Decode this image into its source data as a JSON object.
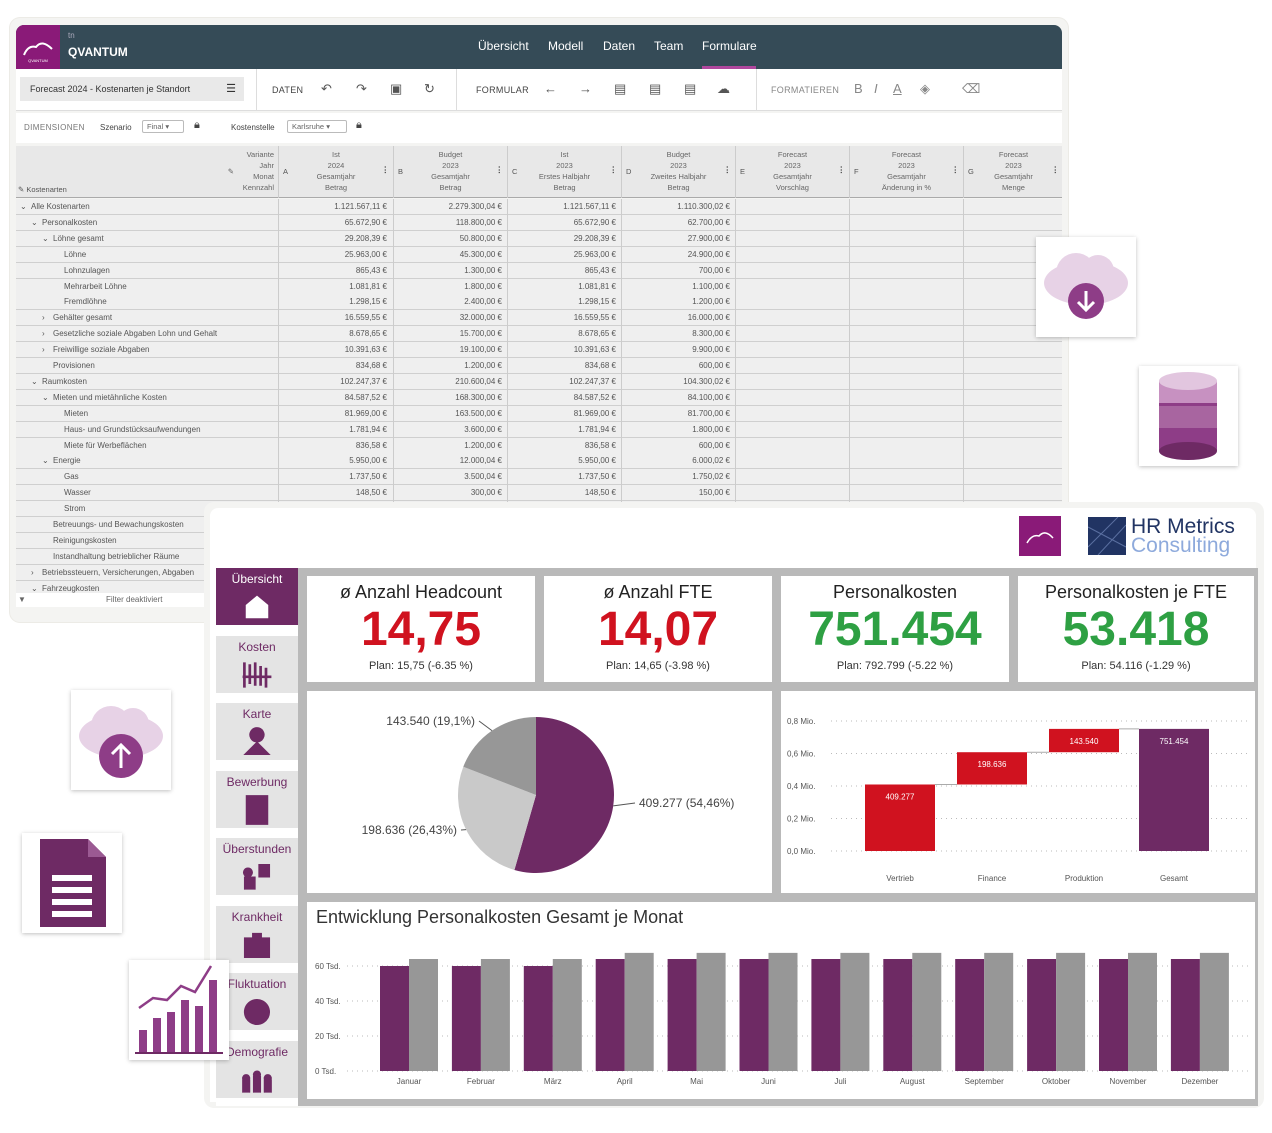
{
  "app": {
    "logo_small": "tn",
    "logo_text": "QVANTUM",
    "logo_sub": "QVANTUM",
    "nav": [
      "Übersicht",
      "Modell",
      "Daten",
      "Team",
      "Formulare"
    ],
    "nav_active": "Formulare",
    "form_title": "Forecast 2024 - Kostenarten je Standort",
    "toolbar": {
      "daten": "DATEN",
      "formular": "FORMULAR",
      "formatieren": "FORMATIEREN",
      "bold": "B",
      "italic": "I",
      "font_color": "A"
    },
    "dims": {
      "label": "DIMENSIONEN",
      "szenario_label": "Szenario",
      "szenario_value": "Final",
      "kostenstelle_label": "Kostenstelle",
      "kostenstelle_value": "Karlsruhe"
    },
    "table": {
      "row_header": "Kostenarten",
      "col_header_lines": [
        "Variante",
        "Jahr",
        "Monat",
        "Kennzahl"
      ],
      "columns": [
        {
          "key": "A",
          "lines": [
            "Ist",
            "2024",
            "Gesamtjahr",
            "Betrag"
          ]
        },
        {
          "key": "B",
          "lines": [
            "Budget",
            "2023",
            "Gesamtjahr",
            "Betrag"
          ]
        },
        {
          "key": "C",
          "lines": [
            "Ist",
            "2023",
            "Erstes Halbjahr",
            "Betrag"
          ]
        },
        {
          "key": "D",
          "lines": [
            "Budget",
            "2023",
            "Zweites Halbjahr",
            "Betrag"
          ]
        },
        {
          "key": "E",
          "lines": [
            "Forecast",
            "2023",
            "Gesamtjahr",
            "Vorschlag"
          ]
        },
        {
          "key": "F",
          "lines": [
            "Forecast",
            "2023",
            "Gesamtjahr",
            "Änderung in %"
          ]
        },
        {
          "key": "G",
          "lines": [
            "Forecast",
            "2023",
            "Gesamtjahr",
            "Menge"
          ]
        }
      ],
      "rows": [
        {
          "label": "Alle Kostenarten",
          "level": 0,
          "toggle": "open",
          "values": [
            "1.121.567,11 €",
            "2.279.300,04 €",
            "1.121.567,11 €",
            "1.110.300,02 €"
          ]
        },
        {
          "label": "Personalkosten",
          "level": 1,
          "toggle": "open",
          "values": [
            "65.672,90 €",
            "118.800,00 €",
            "65.672,90 €",
            "62.700,00 €"
          ]
        },
        {
          "label": "Löhne gesamt",
          "level": 2,
          "toggle": "open",
          "values": [
            "29.208,39 €",
            "50.800,00 €",
            "29.208,39 €",
            "27.900,00 €"
          ]
        },
        {
          "label": "Löhne",
          "level": 3,
          "values": [
            "25.963,00 €",
            "45.300,00 €",
            "25.963,00 €",
            "24.900,00 €"
          ]
        },
        {
          "label": "Lohnzulagen",
          "level": 3,
          "values": [
            "865,43 €",
            "1.300,00 €",
            "865,43 €",
            "700,00 €"
          ]
        },
        {
          "label": "Mehrarbeit Löhne",
          "level": 3,
          "values": [
            "1.081,81 €",
            "1.800,00 €",
            "1.081,81 €",
            "1.100,00 €"
          ]
        },
        {
          "label": "Fremdlöhne",
          "level": 3,
          "values": [
            "1.298,15 €",
            "2.400,00 €",
            "1.298,15 €",
            "1.200,00 €"
          ]
        },
        {
          "label": "Gehälter gesamt",
          "level": 2,
          "toggle": "closed",
          "values": [
            "16.559,55 €",
            "32.000,00 €",
            "16.559,55 €",
            "16.000,00 €"
          ]
        },
        {
          "label": "Gesetzliche soziale Abgaben Lohn und Gehalt",
          "level": 2,
          "toggle": "closed",
          "values": [
            "8.678,65 €",
            "15.700,00 €",
            "8.678,65 €",
            "8.300,00 €"
          ]
        },
        {
          "label": "Freiwillige soziale Abgaben",
          "level": 2,
          "toggle": "closed",
          "values": [
            "10.391,63 €",
            "19.100,00 €",
            "10.391,63 €",
            "9.900,00 €"
          ]
        },
        {
          "label": "Provisionen",
          "level": 2,
          "values": [
            "834,68 €",
            "1.200,00 €",
            "834,68 €",
            "600,00 €"
          ]
        },
        {
          "label": "Raumkosten",
          "level": 1,
          "toggle": "open",
          "values": [
            "102.247,37 €",
            "210.600,04 €",
            "102.247,37 €",
            "104.300,02 €"
          ]
        },
        {
          "label": "Mieten und mietähnliche Kosten",
          "level": 2,
          "toggle": "open",
          "values": [
            "84.587,52 €",
            "168.300,00 €",
            "84.587,52 €",
            "84.100,00 €"
          ]
        },
        {
          "label": "Mieten",
          "level": 3,
          "values": [
            "81.969,00 €",
            "163.500,00 €",
            "81.969,00 €",
            "81.700,00 €"
          ]
        },
        {
          "label": "Haus- und Grundstücksaufwendungen",
          "level": 3,
          "values": [
            "1.781,94 €",
            "3.600,00 €",
            "1.781,94 €",
            "1.800,00 €"
          ]
        },
        {
          "label": "Miete für Werbeflächen",
          "level": 3,
          "values": [
            "836,58 €",
            "1.200,00 €",
            "836,58 €",
            "600,00 €"
          ]
        },
        {
          "label": "Energie",
          "level": 2,
          "toggle": "open",
          "values": [
            "5.950,00 €",
            "12.000,04 €",
            "5.950,00 €",
            "6.000,02 €"
          ]
        },
        {
          "label": "Gas",
          "level": 3,
          "values": [
            "1.737,50 €",
            "3.500,04 €",
            "1.737,50 €",
            "1.750,02 €"
          ]
        },
        {
          "label": "Wasser",
          "level": 3,
          "values": [
            "148,50 €",
            "300,00 €",
            "148,50 €",
            "150,00 €"
          ]
        },
        {
          "label": "Strom",
          "level": 3,
          "values": []
        },
        {
          "label": "Betreuungs- und Bewachungskosten",
          "level": 2,
          "values": []
        },
        {
          "label": "Reinigungskosten",
          "level": 2,
          "values": []
        },
        {
          "label": "Instandhaltung betrieblicher Räume",
          "level": 2,
          "values": []
        },
        {
          "label": "Betriebssteuern, Versicherungen, Abgaben",
          "level": 1,
          "toggle": "closed",
          "values": []
        },
        {
          "label": "Fahrzeugkosten",
          "level": 1,
          "toggle": "open",
          "values": []
        }
      ],
      "filter": "Filter deaktiviert"
    }
  },
  "dashboard": {
    "brand": {
      "line1": "HR Metrics",
      "line2": "Consulting"
    },
    "sidebar": [
      "Übersicht",
      "Kosten",
      "Karte",
      "Bewerbung",
      "Überstunden",
      "Krankheit",
      "Fluktuation",
      "Demografie"
    ],
    "sidebar_active": "Übersicht",
    "kpis": [
      {
        "title": "ø Anzahl Headcount",
        "value": "14,75",
        "plan": "Plan: 15,75 (-6.35 %)",
        "color": "#d0121f"
      },
      {
        "title": "ø Anzahl FTE",
        "value": "14,07",
        "plan": "Plan: 14,65 (-3.98 %)",
        "color": "#d0121f"
      },
      {
        "title": "Personalkosten",
        "value": "751.454",
        "plan": "Plan: 792.799 (-5.22 %)",
        "color": "#2ea043"
      },
      {
        "title": "Personalkosten je FTE",
        "value": "53.418",
        "plan": "Plan: 54.116 (-1.29 %)",
        "color": "#2ea043"
      }
    ]
  },
  "chart_data": [
    {
      "type": "pie",
      "slices": [
        {
          "value": 409277,
          "percent": 54.46,
          "label": "409.277 (54,46%)",
          "color": "#6e2a64"
        },
        {
          "value": 198636,
          "percent": 26.43,
          "label": "198.636 (26,43%)",
          "color": "#c9c9c9"
        },
        {
          "value": 143540,
          "percent": 19.1,
          "label": "143.540 (19,1%)",
          "color": "#979797"
        }
      ]
    },
    {
      "type": "waterfall",
      "categories": [
        "Vertrieb",
        "Finance",
        "Produktion",
        "Gesamt"
      ],
      "values": [
        409277,
        198636,
        143540,
        751454
      ],
      "labels": [
        "409.277",
        "198.636",
        "143.540",
        "751.454"
      ],
      "total_index": 3,
      "yticks": [
        "0,0 Mio.",
        "0,2 Mio.",
        "0,4 Mio.",
        "0,6 Mio.",
        "0,8 Mio."
      ],
      "ylim": [
        0,
        800000
      ],
      "colors": {
        "step": "#d0121f",
        "total": "#6e2a64"
      },
      "grid": true
    },
    {
      "type": "bar",
      "title": "Entwicklung Personalkosten Gesamt je Monat",
      "categories": [
        "Januar",
        "Februar",
        "März",
        "April",
        "Mai",
        "Juni",
        "Juli",
        "August",
        "September",
        "Oktober",
        "November",
        "Dezember"
      ],
      "series": [
        {
          "values": [
            60,
            60,
            60,
            64,
            64,
            64,
            64,
            64,
            64,
            64,
            64,
            64
          ],
          "color": "#6e2a64"
        },
        {
          "values": [
            64,
            64,
            64,
            67.5,
            67.5,
            67.5,
            67.5,
            67.5,
            67.5,
            67.5,
            67.5,
            67.5
          ],
          "color": "#979797"
        }
      ],
      "yticks": [
        "0 Tsd.",
        "20 Tsd.",
        "40 Tsd.",
        "60 Tsd."
      ],
      "ylim": [
        0,
        70
      ],
      "grid": true
    }
  ]
}
